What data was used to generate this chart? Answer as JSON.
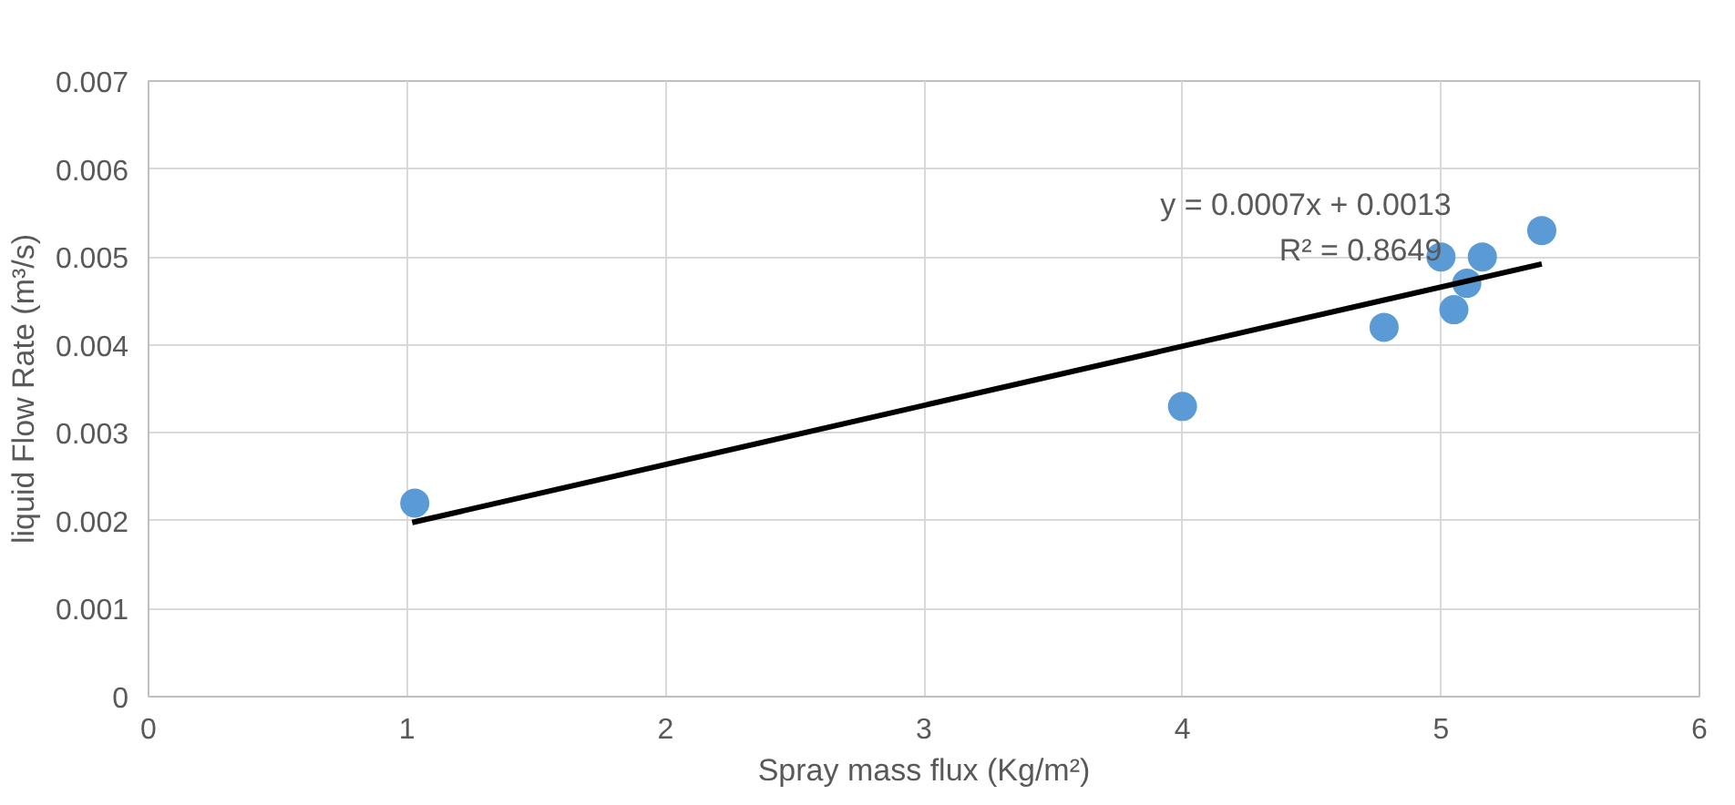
{
  "chart_data": {
    "type": "scatter",
    "xlabel": "Spray mass flux (Kg/m²)",
    "ylabel": "liquid Flow Rate (m³/s)",
    "xlim": [
      0,
      6
    ],
    "xticks": [
      0,
      1,
      2,
      3,
      4,
      5,
      6
    ],
    "ylim": [
      0,
      0.007
    ],
    "yticks": [
      0,
      0.001,
      0.002,
      0.003,
      0.004,
      0.005,
      0.006,
      0.007
    ],
    "grid": true,
    "series": [
      {
        "marker": "circle",
        "color": "#5b9bd5",
        "x": [
          1.03,
          4.0,
          4.78,
          5.0,
          5.05,
          5.1,
          5.16,
          5.39
        ],
        "values": [
          0.0022,
          0.0033,
          0.0042,
          0.005,
          0.0044,
          0.0047,
          0.005,
          0.0053
        ]
      },
      {
        "type": "line",
        "marker": "none",
        "color": "#000000",
        "x": [
          1.02,
          5.39
        ],
        "values": [
          0.00198,
          0.00492
        ]
      }
    ],
    "annotations": [
      "y = 0.0007x + 0.0013",
      "R² = 0.8649"
    ]
  }
}
